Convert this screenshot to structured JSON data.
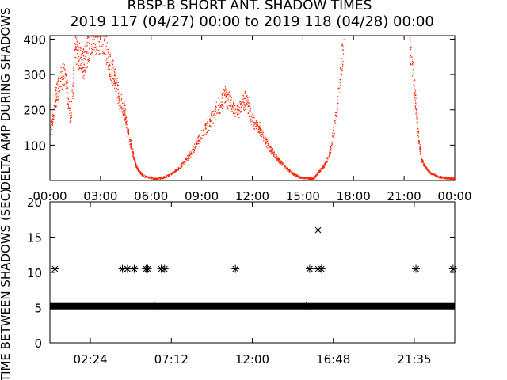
{
  "header": {
    "title": "RBSP-B SHORT ANT. SHADOW TIMES",
    "subtitle": "2019 117 (04/27) 00:00 to 2019 118 (04/28) 00:00"
  },
  "chart_data": [
    {
      "type": "scatter",
      "title": "RBSP-B SHORT ANT. SHADOW TIMES",
      "ylabel": "DELTA AMP DURING SHADOWS",
      "xlabel": "",
      "xlim": [
        0,
        24
      ],
      "ylim": [
        0,
        410
      ],
      "x_tick_labels": [
        "00:00",
        "03:00",
        "06:00",
        "09:00",
        "12:00",
        "15:00",
        "18:00",
        "21:00",
        "00:00"
      ],
      "y_ticks": [
        100,
        200,
        300,
        400
      ],
      "y_tick_labels": [
        "100",
        "200",
        "300",
        "400"
      ],
      "color": "#ff2000",
      "series": [
        {
          "x_hours": [
            0.0,
            0.3,
            0.6,
            0.9,
            1.2,
            1.5,
            1.8,
            2.0,
            2.3,
            2.6,
            2.9,
            3.2,
            3.5,
            3.8,
            4.1,
            4.4,
            4.6,
            4.9,
            5.1,
            5.3,
            5.5,
            6.2,
            6.6,
            7.0,
            7.5,
            8.0,
            8.5,
            9.0,
            9.5,
            10.0,
            10.4,
            10.8,
            11.2,
            11.6,
            12.0,
            12.4,
            12.8,
            13.2,
            13.6,
            14.0,
            14.4,
            14.8,
            15.3,
            15.6,
            15.9,
            16.2,
            16.6,
            17.0,
            17.4,
            21.3,
            21.6,
            21.8,
            22.0,
            22.3,
            22.6,
            23.0,
            23.5,
            24.0
          ],
          "values": [
            130,
            230,
            290,
            300,
            170,
            380,
            350,
            330,
            390,
            400,
            410,
            410,
            330,
            300,
            230,
            200,
            140,
            80,
            40,
            25,
            15,
            5,
            8,
            15,
            30,
            55,
            90,
            130,
            170,
            215,
            240,
            210,
            200,
            230,
            170,
            150,
            110,
            80,
            55,
            35,
            20,
            10,
            8,
            5,
            25,
            40,
            80,
            200,
            400,
            400,
            260,
            140,
            60,
            35,
            20,
            12,
            8,
            5
          ]
        }
      ]
    },
    {
      "type": "scatter",
      "ylabel": "TIME BETWEEN SHADOWS (SEC)",
      "xlabel": "",
      "xlim": [
        0,
        24
      ],
      "ylim": [
        0,
        20
      ],
      "x_tick_labels": [
        "02:24",
        "07:12",
        "12:00",
        "16:48",
        "21:35"
      ],
      "y_ticks": [
        0,
        5,
        10,
        15,
        20
      ],
      "y_tick_labels": [
        "0",
        "5",
        "10",
        "15",
        "20"
      ],
      "baseline": {
        "y": 5.2,
        "x_range": [
          0,
          24
        ]
      },
      "series": [
        {
          "x_hours": [
            0.3,
            4.3,
            4.6,
            5.0,
            5.7,
            5.8,
            6.6,
            6.8,
            11.0,
            15.4,
            15.9,
            16.1,
            21.7,
            23.9,
            15.9,
            6.2,
            15.2
          ],
          "values": [
            10.5,
            10.5,
            10.5,
            10.5,
            10.5,
            10.5,
            10.5,
            10.5,
            10.5,
            10.5,
            10.5,
            10.5,
            10.5,
            10.5,
            16.0,
            5.2,
            5.2
          ]
        }
      ]
    }
  ]
}
